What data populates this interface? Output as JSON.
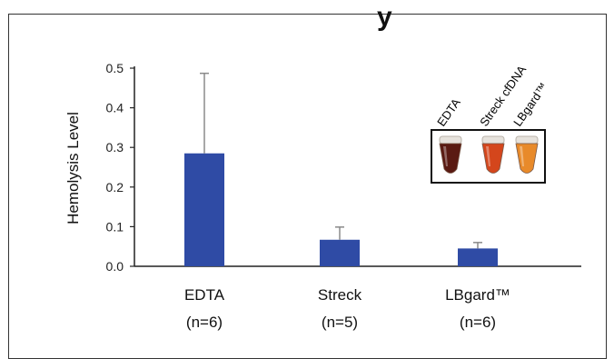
{
  "chart_data": {
    "type": "bar",
    "title_fragment": "y",
    "ylabel": "Hemolysis Level",
    "xlabel": "",
    "ylim": [
      0,
      0.5
    ],
    "yticks": [
      "0.0",
      "0.1",
      "0.2",
      "0.3",
      "0.4",
      "0.5"
    ],
    "categories": [
      "EDTA",
      "Streck",
      "LBgard™"
    ],
    "category_counts": [
      "(n=6)",
      "(n=5)",
      "(n=6)"
    ],
    "values": [
      0.285,
      0.067,
      0.045
    ],
    "error_upper": [
      0.487,
      0.099,
      0.06
    ],
    "bar_color": "#2f4ba5",
    "error_color": "#8a8a8a",
    "legend": "none",
    "grid": false
  },
  "inset": {
    "labels": [
      "EDTA",
      "Streck cfDNA",
      "LBgard™"
    ],
    "tube_colors": [
      "#5a1a12",
      "#d4461c",
      "#e88a2a"
    ]
  }
}
